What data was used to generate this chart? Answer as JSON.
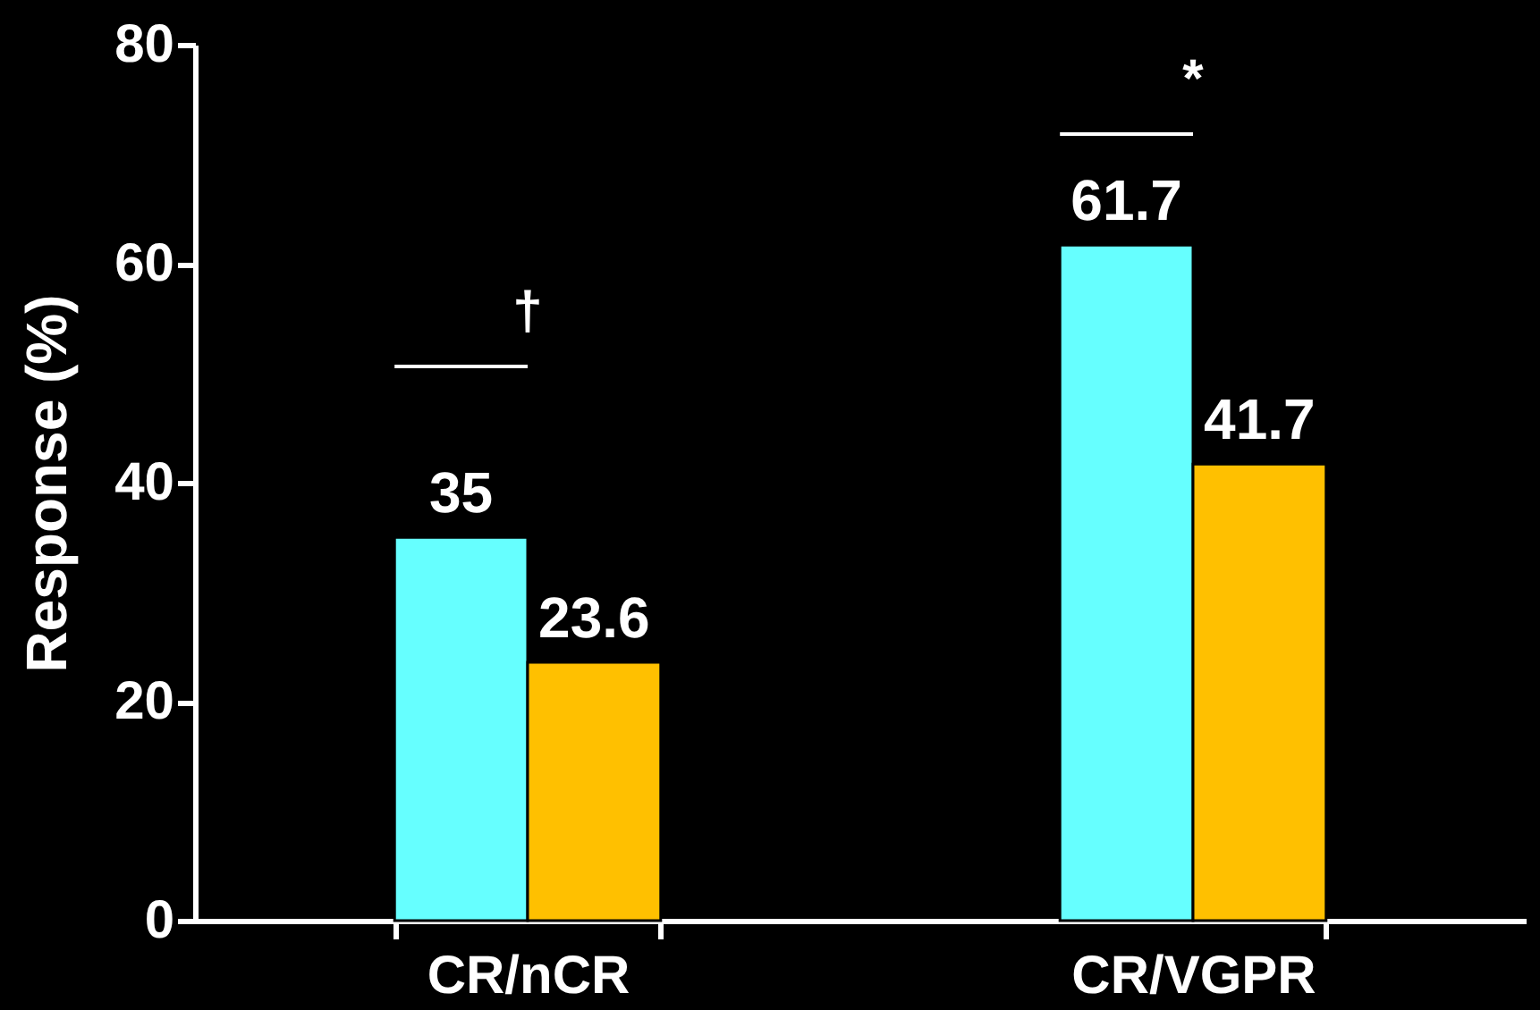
{
  "chart_data": {
    "type": "bar",
    "ylabel": "Response (%)",
    "categories": [
      "CR/nCR",
      "CR/VGPR"
    ],
    "series": [
      {
        "color": "#66ffff",
        "values": [
          35,
          61.7
        ]
      },
      {
        "color": "#ffc000",
        "values": [
          23.6,
          41.7
        ]
      }
    ],
    "ylim": [
      0,
      80
    ],
    "yticks": [
      0,
      20,
      40,
      60,
      80
    ],
    "grid": false,
    "legend": false,
    "data_labels": true,
    "annotations": [
      "†",
      "*"
    ]
  }
}
